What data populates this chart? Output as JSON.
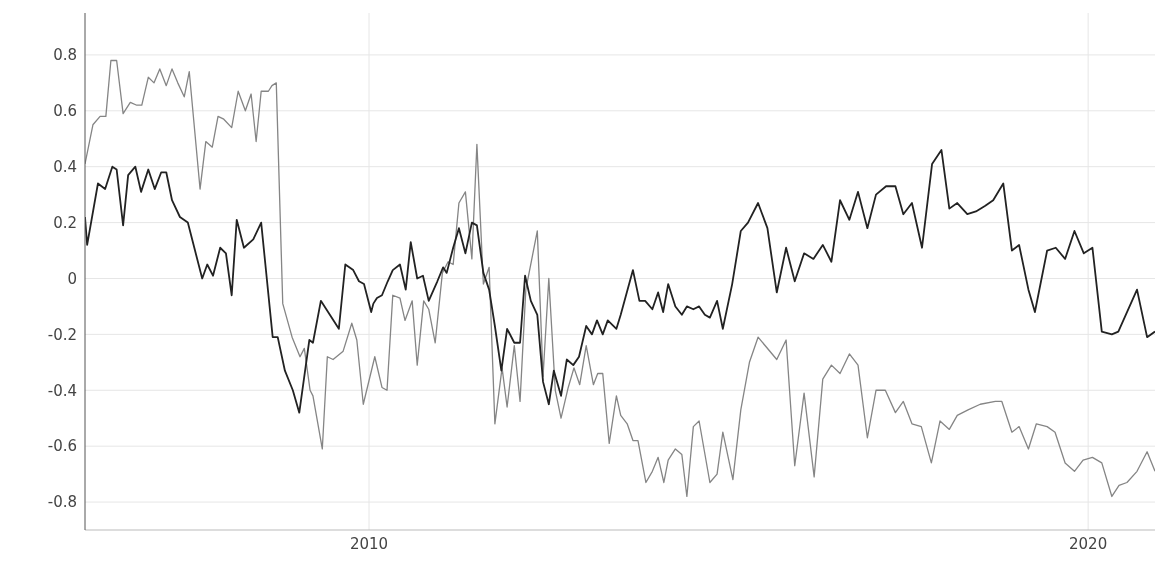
{
  "chart_data": {
    "type": "line",
    "xlim": [
      2006.05,
      2020.93
    ],
    "xticks": [
      2010,
      2020
    ],
    "ylim": [
      -0.9,
      0.95
    ],
    "yticks": [
      -0.8,
      -0.6,
      -0.4,
      -0.2,
      0,
      0.2,
      0.4,
      0.6,
      0.8
    ],
    "grid": true,
    "series": [
      {
        "color": "#858585",
        "x": [
          2006.05,
          2006.16,
          2006.26,
          2006.34,
          2006.41,
          2006.49,
          2006.58,
          2006.68,
          2006.77,
          2006.84,
          2006.93,
          2007.01,
          2007.09,
          2007.18,
          2007.26,
          2007.34,
          2007.43,
          2007.5,
          2007.65,
          2007.73,
          2007.82,
          2007.9,
          2007.98,
          2008.09,
          2008.18,
          2008.28,
          2008.36,
          2008.43,
          2008.5,
          2008.6,
          2008.65,
          2008.71,
          2008.8,
          2008.93,
          2009.04,
          2009.1,
          2009.18,
          2009.22,
          2009.35,
          2009.42,
          2009.5,
          2009.64,
          2009.76,
          2009.83,
          2009.92,
          2010.08,
          2010.18,
          2010.25,
          2010.33,
          2010.43,
          2010.5,
          2010.6,
          2010.67,
          2010.76,
          2010.83,
          2010.92,
          2011.02,
          2011.1,
          2011.17,
          2011.25,
          2011.34,
          2011.43,
          2011.5,
          2011.59,
          2011.67,
          2011.75,
          2011.85,
          2011.92,
          2012.02,
          2012.1,
          2012.18,
          2012.34,
          2012.42,
          2012.5,
          2012.59,
          2012.67,
          2012.77,
          2012.85,
          2012.93,
          2013.02,
          2013.12,
          2013.18,
          2013.25,
          2013.34,
          2013.44,
          2013.5,
          2013.59,
          2013.67,
          2013.74,
          2013.85,
          2013.94,
          2014.02,
          2014.1,
          2014.16,
          2014.26,
          2014.35,
          2014.42,
          2014.51,
          2014.59,
          2014.74,
          2014.84,
          2014.92,
          2015.06,
          2015.17,
          2015.29,
          2015.41,
          2015.67,
          2015.8,
          2015.92,
          2016.05,
          2016.19,
          2016.31,
          2016.43,
          2016.55,
          2016.68,
          2016.8,
          2016.93,
          2017.05,
          2017.18,
          2017.32,
          2017.43,
          2017.55,
          2017.68,
          2017.82,
          2017.94,
          2018.07,
          2018.18,
          2018.33,
          2018.5,
          2018.71,
          2018.8,
          2018.94,
          2019.04,
          2019.17,
          2019.28,
          2019.43,
          2019.54,
          2019.68,
          2019.81,
          2019.93,
          2020.06,
          2020.19,
          2020.33,
          2020.43,
          2020.54,
          2020.68,
          2020.82,
          2020.93
        ],
        "values": [
          0.41,
          0.55,
          0.58,
          0.58,
          0.78,
          0.78,
          0.59,
          0.63,
          0.62,
          0.62,
          0.72,
          0.7,
          0.75,
          0.69,
          0.75,
          0.7,
          0.65,
          0.74,
          0.32,
          0.49,
          0.47,
          0.58,
          0.57,
          0.54,
          0.67,
          0.6,
          0.66,
          0.49,
          0.67,
          0.67,
          0.69,
          0.7,
          -0.09,
          -0.21,
          -0.28,
          -0.25,
          -0.4,
          -0.42,
          -0.61,
          -0.28,
          -0.29,
          -0.26,
          -0.16,
          -0.22,
          -0.45,
          -0.28,
          -0.39,
          -0.4,
          -0.06,
          -0.07,
          -0.15,
          -0.08,
          -0.31,
          -0.08,
          -0.11,
          -0.23,
          0.02,
          0.06,
          0.05,
          0.27,
          0.31,
          0.07,
          0.48,
          -0.02,
          0.04,
          -0.52,
          -0.32,
          -0.46,
          -0.24,
          -0.44,
          -0.04,
          0.17,
          -0.35,
          0,
          -0.4,
          -0.5,
          -0.39,
          -0.32,
          -0.38,
          -0.24,
          -0.38,
          -0.34,
          -0.34,
          -0.59,
          -0.42,
          -0.49,
          -0.52,
          -0.58,
          -0.58,
          -0.73,
          -0.69,
          -0.64,
          -0.73,
          -0.65,
          -0.61,
          -0.63,
          -0.78,
          -0.53,
          -0.51,
          -0.73,
          -0.7,
          -0.55,
          -0.72,
          -0.47,
          -0.3,
          -0.21,
          -0.29,
          -0.22,
          -0.67,
          -0.41,
          -0.71,
          -0.36,
          -0.31,
          -0.34,
          -0.27,
          -0.31,
          -0.57,
          -0.4,
          -0.4,
          -0.48,
          -0.44,
          -0.52,
          -0.53,
          -0.66,
          -0.51,
          -0.54,
          -0.49,
          -0.47,
          -0.45,
          -0.44,
          -0.44,
          -0.55,
          -0.53,
          -0.61,
          -0.52,
          -0.53,
          -0.55,
          -0.66,
          -0.69,
          -0.65,
          -0.64,
          -0.66,
          -0.78,
          -0.74,
          -0.73,
          -0.69,
          -0.62,
          -0.69
        ]
      },
      {
        "color": "#222222",
        "x": [
          2006.05,
          2006.08,
          2006.23,
          2006.33,
          2006.43,
          2006.49,
          2006.58,
          2006.65,
          2006.75,
          2006.83,
          2006.93,
          2007.02,
          2007.11,
          2007.18,
          2007.26,
          2007.37,
          2007.48,
          2007.58,
          2007.68,
          2007.75,
          2007.83,
          2007.93,
          2008.01,
          2008.09,
          2008.16,
          2008.26,
          2008.39,
          2008.5,
          2008.66,
          2008.73,
          2008.83,
          2008.94,
          2009.03,
          2009.17,
          2009.22,
          2009.33,
          2009.58,
          2009.67,
          2009.78,
          2009.86,
          2009.93,
          2010.03,
          2010.06,
          2010.11,
          2010.18,
          2010.26,
          2010.33,
          2010.43,
          2010.51,
          2010.58,
          2010.67,
          2010.75,
          2010.83,
          2010.95,
          2011.03,
          2011.08,
          2011.17,
          2011.25,
          2011.34,
          2011.43,
          2011.5,
          2011.59,
          2011.67,
          2011.75,
          2011.84,
          2011.92,
          2012.02,
          2012.1,
          2012.17,
          2012.25,
          2012.34,
          2012.42,
          2012.5,
          2012.57,
          2012.67,
          2012.75,
          2012.84,
          2012.92,
          2013.02,
          2013.1,
          2013.17,
          2013.25,
          2013.32,
          2013.44,
          2013.5,
          2013.67,
          2013.76,
          2013.84,
          2013.94,
          2014.02,
          2014.09,
          2014.16,
          2014.26,
          2014.35,
          2014.42,
          2014.51,
          2014.59,
          2014.67,
          2014.74,
          2014.84,
          2014.92,
          2015.05,
          2015.17,
          2015.27,
          2015.41,
          2015.54,
          2015.67,
          2015.8,
          2015.92,
          2016.05,
          2016.18,
          2016.31,
          2016.43,
          2016.55,
          2016.68,
          2016.8,
          2016.93,
          2017.05,
          2017.19,
          2017.32,
          2017.43,
          2017.55,
          2017.69,
          2017.83,
          2017.96,
          2018.07,
          2018.18,
          2018.32,
          2018.44,
          2018.57,
          2018.68,
          2018.82,
          2018.94,
          2019.04,
          2019.17,
          2019.26,
          2019.43,
          2019.55,
          2019.68,
          2019.81,
          2019.94,
          2020.06,
          2020.19,
          2020.33,
          2020.42,
          2020.68,
          2020.82,
          2020.93
        ],
        "values": [
          0.22,
          0.12,
          0.34,
          0.32,
          0.4,
          0.39,
          0.19,
          0.37,
          0.4,
          0.31,
          0.39,
          0.32,
          0.38,
          0.38,
          0.28,
          0.22,
          0.2,
          0.1,
          0,
          0.05,
          0.01,
          0.11,
          0.09,
          -0.06,
          0.21,
          0.11,
          0.14,
          0.2,
          -0.21,
          -0.21,
          -0.33,
          -0.4,
          -0.48,
          -0.22,
          -0.23,
          -0.08,
          -0.18,
          0.05,
          0.03,
          -0.01,
          -0.02,
          -0.12,
          -0.09,
          -0.07,
          -0.06,
          -0.01,
          0.03,
          0.05,
          -0.04,
          0.13,
          0,
          0.01,
          -0.08,
          -0.01,
          0.04,
          0.02,
          0.11,
          0.18,
          0.09,
          0.2,
          0.19,
          0.02,
          -0.04,
          -0.17,
          -0.33,
          -0.18,
          -0.23,
          -0.23,
          0.01,
          -0.08,
          -0.13,
          -0.37,
          -0.45,
          -0.33,
          -0.42,
          -0.29,
          -0.31,
          -0.28,
          -0.17,
          -0.2,
          -0.15,
          -0.2,
          -0.15,
          -0.18,
          -0.13,
          0.03,
          -0.08,
          -0.08,
          -0.11,
          -0.05,
          -0.12,
          -0.02,
          -0.1,
          -0.13,
          -0.1,
          -0.11,
          -0.1,
          -0.13,
          -0.14,
          -0.08,
          -0.18,
          -0.02,
          0.17,
          0.2,
          0.27,
          0.18,
          -0.05,
          0.11,
          -0.01,
          0.09,
          0.07,
          0.12,
          0.06,
          0.28,
          0.21,
          0.31,
          0.18,
          0.3,
          0.33,
          0.33,
          0.23,
          0.27,
          0.11,
          0.41,
          0.46,
          0.25,
          0.27,
          0.23,
          0.24,
          0.26,
          0.28,
          0.34,
          0.1,
          0.12,
          -0.04,
          -0.12,
          0.1,
          0.11,
          0.07,
          0.17,
          0.09,
          0.11,
          -0.19,
          -0.2,
          -0.19,
          -0.04,
          -0.21,
          -0.19
        ]
      }
    ]
  }
}
